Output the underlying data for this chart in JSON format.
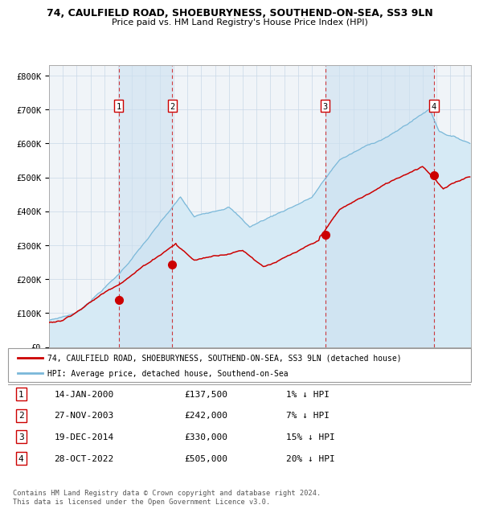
{
  "title1": "74, CAULFIELD ROAD, SHOEBURYNESS, SOUTHEND-ON-SEA, SS3 9LN",
  "title2": "Price paid vs. HM Land Registry's House Price Index (HPI)",
  "ylim": [
    0,
    830000
  ],
  "yticks": [
    0,
    100000,
    200000,
    300000,
    400000,
    500000,
    600000,
    700000,
    800000
  ],
  "ytick_labels": [
    "£0",
    "£100K",
    "£200K",
    "£300K",
    "£400K",
    "£500K",
    "£600K",
    "£700K",
    "£800K"
  ],
  "xlim_start": 1995.0,
  "xlim_end": 2025.5,
  "sale_dates": [
    2000.04,
    2003.91,
    2014.97,
    2022.83
  ],
  "sale_prices": [
    137500,
    242000,
    330000,
    505000
  ],
  "sale_labels": [
    "1",
    "2",
    "3",
    "4"
  ],
  "hpi_color": "#7ab8d9",
  "hpi_fill_color": "#d6eaf5",
  "price_color": "#cc0000",
  "dot_color": "#cc0000",
  "dashed_line_color": "#cc0000",
  "background_color": "#ffffff",
  "grid_color": "#cccccc",
  "legend_red_label": "74, CAULFIELD ROAD, SHOEBURYNESS, SOUTHEND-ON-SEA, SS3 9LN (detached house)",
  "legend_blue_label": "HPI: Average price, detached house, Southend-on-Sea",
  "transactions": [
    {
      "num": "1",
      "date": "14-JAN-2000",
      "price": "£137,500",
      "hpi": "1% ↓ HPI"
    },
    {
      "num": "2",
      "date": "27-NOV-2003",
      "price": "£242,000",
      "hpi": "7% ↓ HPI"
    },
    {
      "num": "3",
      "date": "19-DEC-2014",
      "price": "£330,000",
      "hpi": "15% ↓ HPI"
    },
    {
      "num": "4",
      "date": "28-OCT-2022",
      "price": "£505,000",
      "hpi": "20% ↓ HPI"
    }
  ],
  "footnote": "Contains HM Land Registry data © Crown copyright and database right 2024.\nThis data is licensed under the Open Government Licence v3.0."
}
